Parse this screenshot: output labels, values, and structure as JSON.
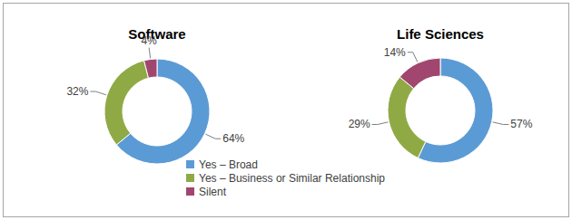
{
  "chart_data": [
    {
      "type": "donut",
      "title": "Software",
      "categories": [
        "Yes – Broad",
        "Yes – Business or Similar Relationship",
        "Silent"
      ],
      "values": [
        64,
        32,
        4
      ],
      "value_labels": [
        "64%",
        "32%",
        "4%"
      ],
      "colors": [
        "#5b9bd5",
        "#8faa45",
        "#a1466f"
      ],
      "data_labels": true,
      "legend": "bottom"
    },
    {
      "type": "donut",
      "title": "Life Sciences",
      "values": [
        57,
        29,
        14
      ],
      "value_labels": [
        "57%",
        "29%",
        "14%"
      ],
      "colors": [
        "#5b9bd5",
        "#8faa45",
        "#a1466f"
      ],
      "data_labels": true
    }
  ]
}
